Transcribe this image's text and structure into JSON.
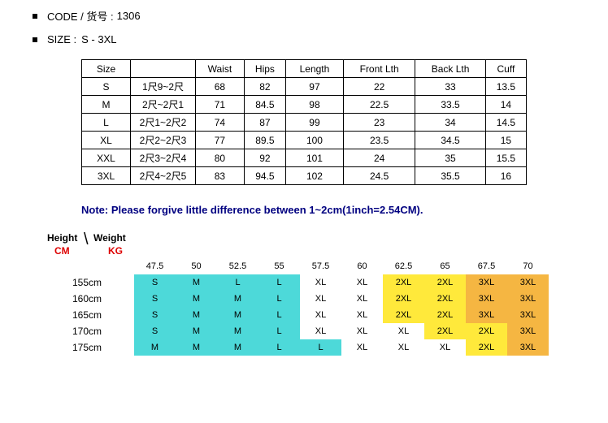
{
  "header": {
    "code_label": "CODE / 货号 :",
    "code_value": "1306",
    "size_label": "SIZE :",
    "size_value": "S - 3XL"
  },
  "size_table": {
    "columns": [
      "Size",
      "",
      "Waist",
      "Hips",
      "Length",
      "Front Lth",
      "Back Lth",
      "Cuff"
    ],
    "rows": [
      [
        "S",
        "1尺9~2尺",
        "68",
        "82",
        "97",
        "22",
        "33",
        "13.5"
      ],
      [
        "M",
        "2尺~2尺1",
        "71",
        "84.5",
        "98",
        "22.5",
        "33.5",
        "14"
      ],
      [
        "L",
        "2尺1~2尺2",
        "74",
        "87",
        "99",
        "23",
        "34",
        "14.5"
      ],
      [
        "XL",
        "2尺2~2尺3",
        "77",
        "89.5",
        "100",
        "23.5",
        "34.5",
        "15"
      ],
      [
        "XXL",
        "2尺3~2尺4",
        "80",
        "92",
        "101",
        "24",
        "35",
        "15.5"
      ],
      [
        "3XL",
        "2尺4~2尺5",
        "83",
        "94.5",
        "102",
        "24.5",
        "35.5",
        "16"
      ]
    ]
  },
  "note": "Note: Please forgive little difference between 1~2cm(1inch=2.54CM).",
  "hw": {
    "height_label": "Height",
    "weight_label": "Weight",
    "cm_label": "CM",
    "kg_label": "KG",
    "weights": [
      "47.5",
      "50",
      "52.5",
      "55",
      "57.5",
      "60",
      "62.5",
      "65",
      "67.5",
      "70"
    ],
    "heights": [
      "155cm",
      "160cm",
      "165cm",
      "170cm",
      "175cm"
    ],
    "cells": [
      [
        {
          "v": "S",
          "c": "c-cyan"
        },
        {
          "v": "M",
          "c": "c-cyan"
        },
        {
          "v": "L",
          "c": "c-cyan"
        },
        {
          "v": "L",
          "c": "c-cyan"
        },
        {
          "v": "XL",
          "c": ""
        },
        {
          "v": "XL",
          "c": ""
        },
        {
          "v": "2XL",
          "c": "c-yellow"
        },
        {
          "v": "2XL",
          "c": "c-yellow"
        },
        {
          "v": "3XL",
          "c": "c-orange"
        },
        {
          "v": "3XL",
          "c": "c-orange"
        }
      ],
      [
        {
          "v": "S",
          "c": "c-cyan"
        },
        {
          "v": "M",
          "c": "c-cyan"
        },
        {
          "v": "M",
          "c": "c-cyan"
        },
        {
          "v": "L",
          "c": "c-cyan"
        },
        {
          "v": "XL",
          "c": ""
        },
        {
          "v": "XL",
          "c": ""
        },
        {
          "v": "2XL",
          "c": "c-yellow"
        },
        {
          "v": "2XL",
          "c": "c-yellow"
        },
        {
          "v": "3XL",
          "c": "c-orange"
        },
        {
          "v": "3XL",
          "c": "c-orange"
        }
      ],
      [
        {
          "v": "S",
          "c": "c-cyan"
        },
        {
          "v": "M",
          "c": "c-cyan"
        },
        {
          "v": "M",
          "c": "c-cyan"
        },
        {
          "v": "L",
          "c": "c-cyan"
        },
        {
          "v": "XL",
          "c": ""
        },
        {
          "v": "XL",
          "c": ""
        },
        {
          "v": "2XL",
          "c": "c-yellow"
        },
        {
          "v": "2XL",
          "c": "c-yellow"
        },
        {
          "v": "3XL",
          "c": "c-orange"
        },
        {
          "v": "3XL",
          "c": "c-orange"
        }
      ],
      [
        {
          "v": "S",
          "c": "c-cyan"
        },
        {
          "v": "M",
          "c": "c-cyan"
        },
        {
          "v": "M",
          "c": "c-cyan"
        },
        {
          "v": "L",
          "c": "c-cyan"
        },
        {
          "v": "XL",
          "c": ""
        },
        {
          "v": "XL",
          "c": ""
        },
        {
          "v": "XL",
          "c": ""
        },
        {
          "v": "2XL",
          "c": "c-yellow"
        },
        {
          "v": "2XL",
          "c": "c-yellow"
        },
        {
          "v": "3XL",
          "c": "c-orange"
        }
      ],
      [
        {
          "v": "M",
          "c": "c-cyan"
        },
        {
          "v": "M",
          "c": "c-cyan"
        },
        {
          "v": "M",
          "c": "c-cyan"
        },
        {
          "v": "L",
          "c": "c-cyan"
        },
        {
          "v": "L",
          "c": "c-cyan"
        },
        {
          "v": "XL",
          "c": ""
        },
        {
          "v": "XL",
          "c": ""
        },
        {
          "v": "XL",
          "c": ""
        },
        {
          "v": "2XL",
          "c": "c-yellow"
        },
        {
          "v": "3XL",
          "c": "c-orange"
        }
      ]
    ]
  }
}
